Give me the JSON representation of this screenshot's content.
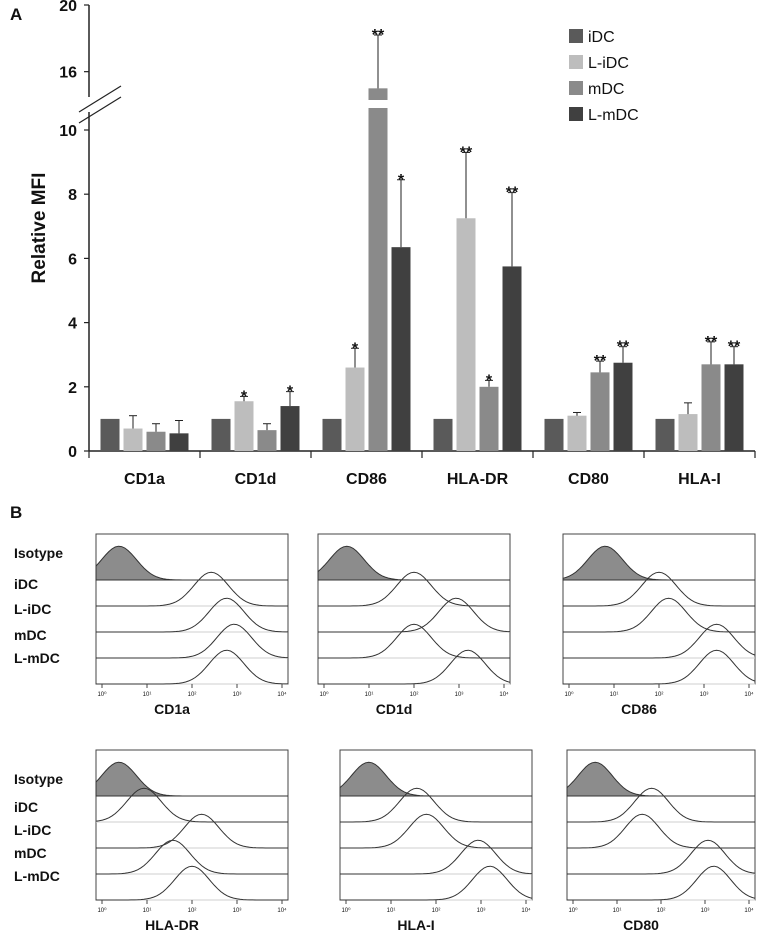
{
  "figure": {
    "panel_a_letter": "A",
    "panel_b_letter": "B"
  },
  "chart_data": [
    {
      "type": "bar",
      "panel": "A",
      "title": "",
      "xlabel": "",
      "ylabel": "Relative MFI",
      "ylim_lower": [
        0,
        10
      ],
      "ylim_upper": [
        14,
        20
      ],
      "y_ticks": [
        "0",
        "2",
        "4",
        "6",
        "8",
        "10",
        "16",
        "20"
      ],
      "axis_break": true,
      "legend_position": "top-right",
      "categories": [
        "CD1a",
        "CD1d",
        "CD86",
        "HLA-DR",
        "CD80",
        "HLA-I"
      ],
      "series": [
        {
          "name": "iDC",
          "color": "#5a5a5a",
          "values": [
            1.0,
            1.0,
            1.0,
            1.0,
            1.0,
            1.0
          ],
          "errors": [
            0.0,
            0.0,
            0.0,
            0.0,
            0.0,
            0.0
          ],
          "annotations": [
            "",
            "",
            "",
            "",
            "",
            ""
          ]
        },
        {
          "name": "L-iDC",
          "color": "#bdbdbd",
          "values": [
            0.7,
            1.55,
            2.6,
            7.25,
            1.1,
            1.15
          ],
          "errors": [
            0.4,
            0.15,
            0.6,
            2.05,
            0.1,
            0.35
          ],
          "annotations": [
            "",
            "*",
            "*",
            "**",
            "",
            ""
          ]
        },
        {
          "name": "mDC",
          "color": "#8a8a8a",
          "values": [
            0.6,
            0.65,
            15.0,
            2.0,
            2.45,
            2.7
          ],
          "errors": [
            0.25,
            0.2,
            3.2,
            0.2,
            0.35,
            0.7
          ],
          "annotations": [
            "",
            "",
            "**",
            "*",
            "**",
            "**"
          ]
        },
        {
          "name": "L-mDC",
          "color": "#404040",
          "values": [
            0.55,
            1.4,
            6.35,
            5.75,
            2.75,
            2.7
          ],
          "errors": [
            0.4,
            0.45,
            2.1,
            2.3,
            0.5,
            0.55
          ],
          "annotations": [
            "",
            "*",
            "*",
            "**",
            "**",
            "**"
          ]
        }
      ]
    },
    {
      "type": "histogram_overlay",
      "panel": "B",
      "row_labels": [
        "Isotype",
        "iDC",
        "L-iDC",
        "mDC",
        "L-mDC"
      ],
      "x_ticks": [
        "10⁰",
        "10¹",
        "10²",
        "10³",
        "10⁴"
      ],
      "isotype_fill": "#8c8c8c",
      "panels": [
        {
          "marker": "CD1a",
          "peaks": [
            0.12,
            0.6,
            0.68,
            0.72,
            0.68
          ]
        },
        {
          "marker": "CD1d",
          "peaks": [
            0.15,
            0.5,
            0.72,
            0.5,
            0.78
          ]
        },
        {
          "marker": "CD86",
          "peaks": [
            0.22,
            0.5,
            0.55,
            0.8,
            0.8
          ]
        },
        {
          "marker": "HLA-DR",
          "peaks": [
            0.12,
            0.25,
            0.55,
            0.4,
            0.5
          ]
        },
        {
          "marker": "HLA-I",
          "peaks": [
            0.15,
            0.4,
            0.45,
            0.72,
            0.78
          ]
        },
        {
          "marker": "CD80",
          "peaks": [
            0.15,
            0.45,
            0.4,
            0.75,
            0.78
          ]
        }
      ]
    }
  ]
}
